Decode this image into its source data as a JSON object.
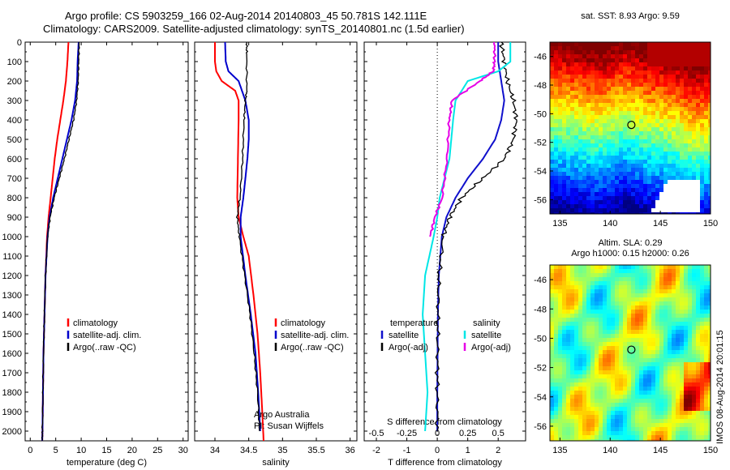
{
  "header": {
    "line1": "Argo profile: CS 5903259_166 02-Aug-2014 20140803_45 50.781S 142.111E",
    "line2": "Climatology: CARS2009. Satellite-adjusted climatology: synTS_20140801.nc (1.5d earlier)"
  },
  "colors": {
    "climatology": "#ff0000",
    "satellite": "#0000cc",
    "argo": "#000000",
    "temp_sat": "#1010cc",
    "sal_sat": "#00e6e6",
    "sal_argo": "#e600e6"
  },
  "chart_data": [
    {
      "type": "line",
      "id": "temperature",
      "xlabel": "temperature (deg C)",
      "ylabel": "",
      "xlim": [
        -1,
        31
      ],
      "ylim": [
        2050,
        0
      ],
      "xticks": [
        0,
        5,
        10,
        15,
        20,
        25,
        30
      ],
      "yticks": [
        0,
        100,
        200,
        300,
        400,
        500,
        600,
        700,
        800,
        900,
        1000,
        1100,
        1200,
        1300,
        1400,
        1500,
        1600,
        1700,
        1800,
        1900,
        2000
      ],
      "legend": [
        "climatology",
        "satellite-adj. clim.",
        "Argo(..raw -QC)"
      ],
      "legend_position": "bottom-right",
      "series": [
        {
          "name": "climatology",
          "color": "#ff0000",
          "depth": [
            0,
            100,
            200,
            300,
            400,
            500,
            600,
            700,
            800,
            900,
            1000,
            1200,
            1400,
            1600,
            1800,
            2000,
            2050
          ],
          "values": [
            7.5,
            7.3,
            7.0,
            6.5,
            5.9,
            5.3,
            4.8,
            4.4,
            4.0,
            3.6,
            3.3,
            3.0,
            2.8,
            2.6,
            2.5,
            2.4,
            2.35
          ]
        },
        {
          "name": "satellite-adj. clim.",
          "color": "#0000cc",
          "depth": [
            0,
            100,
            200,
            300,
            400,
            500,
            600,
            700,
            800,
            900,
            1000,
            1200,
            1400,
            1600,
            1800,
            2000,
            2050
          ],
          "values": [
            9.5,
            9.3,
            9.2,
            8.8,
            8.1,
            7.2,
            6.3,
            5.4,
            4.5,
            3.8,
            3.4,
            3.0,
            2.8,
            2.6,
            2.5,
            2.4,
            2.35
          ]
        },
        {
          "name": "Argo(..raw -QC)",
          "color": "#000000",
          "depth": [
            0,
            100,
            200,
            300,
            400,
            500,
            600,
            700,
            800,
            900,
            1000,
            1200,
            1400,
            1600,
            1800,
            2000,
            2050
          ],
          "values": [
            9.6,
            9.5,
            9.4,
            9.1,
            8.5,
            7.6,
            6.7,
            5.7,
            4.7,
            3.9,
            3.4,
            3.0,
            2.8,
            2.6,
            2.5,
            2.4,
            2.35
          ]
        }
      ]
    },
    {
      "type": "line",
      "id": "salinity",
      "xlabel": "salinity",
      "ylabel": "",
      "xlim": [
        33.7,
        36.1
      ],
      "ylim": [
        2050,
        0
      ],
      "xticks": [
        34,
        34.5,
        35,
        35.5,
        36
      ],
      "legend": [
        "climatology",
        "satellite-adj. clim.",
        "Argo(..raw -QC)"
      ],
      "legend_position": "bottom-right",
      "annotation": [
        "Argo Australia",
        "PI: Susan Wijffels"
      ],
      "series": [
        {
          "name": "climatology",
          "color": "#ff0000",
          "depth": [
            0,
            100,
            150,
            200,
            250,
            300,
            400,
            600,
            800,
            900,
            1000,
            1100,
            1300,
            1500,
            1700,
            1900,
            2050
          ],
          "values": [
            34.0,
            34.0,
            34.02,
            34.1,
            34.3,
            34.35,
            34.35,
            34.34,
            34.33,
            34.35,
            34.42,
            34.5,
            34.57,
            34.63,
            34.67,
            34.7,
            34.72
          ]
        },
        {
          "name": "satellite-adj. clim.",
          "color": "#0000cc",
          "depth": [
            0,
            100,
            150,
            200,
            300,
            400,
            500,
            600,
            700,
            800,
            900,
            1000,
            1200,
            1400,
            1600,
            1800,
            2000
          ],
          "values": [
            34.15,
            34.16,
            34.2,
            34.35,
            34.45,
            34.5,
            34.5,
            34.48,
            34.45,
            34.42,
            34.38,
            34.38,
            34.45,
            34.53,
            34.6,
            34.64,
            34.67
          ]
        },
        {
          "name": "Argo(..raw -QC)",
          "color": "#000000",
          "depth": [
            0,
            40,
            60,
            250,
            300,
            400,
            600,
            800,
            900,
            1000,
            1200,
            1400,
            1600,
            1800,
            2000
          ],
          "values": [
            34.47,
            34.47,
            34.47,
            34.47,
            34.45,
            34.43,
            34.41,
            34.37,
            34.33,
            34.36,
            34.44,
            34.52,
            34.58,
            34.63,
            34.66
          ]
        }
      ]
    },
    {
      "type": "line",
      "id": "differences",
      "xlabel": "T difference from climatology",
      "top_axis_label": "S difference from climatology",
      "xlim": [
        -2.4,
        2.9
      ],
      "ylim": [
        2050,
        0
      ],
      "xticks": [
        -2,
        -1,
        0,
        1,
        2
      ],
      "top_ticks": [
        -0.5,
        -0.25,
        0,
        0.25,
        0.5
      ],
      "top_tick_labels": [
        "-0.5",
        "-0.25",
        "0",
        "0.25",
        "0.5"
      ],
      "legend_groups": [
        {
          "title": "temperature",
          "items": [
            "satellite",
            "Argo(-adj)"
          ]
        },
        {
          "title": "salinity",
          "items": [
            "satellite",
            "Argo(-adj)"
          ]
        }
      ],
      "series": [
        {
          "name": "temperature satellite",
          "color": "#1010cc",
          "depth": [
            0,
            100,
            200,
            300,
            400,
            500,
            600,
            700,
            800,
            900,
            1000,
            1200,
            1400,
            1600,
            1800,
            2000
          ],
          "values": [
            2.0,
            2.0,
            2.1,
            2.2,
            2.1,
            1.9,
            1.5,
            1.0,
            0.6,
            0.3,
            0.15,
            0.05,
            0.02,
            0.01,
            0.0,
            0.0
          ]
        },
        {
          "name": "temperature Argo(-adj)",
          "color": "#000000",
          "depth": [
            0,
            100,
            200,
            300,
            400,
            500,
            600,
            700,
            800,
            900,
            1000,
            1200,
            1400,
            1600,
            1800,
            2000
          ],
          "values": [
            2.1,
            2.2,
            2.3,
            2.5,
            2.6,
            2.5,
            2.2,
            1.5,
            0.8,
            0.4,
            0.2,
            0.05,
            0.02,
            0.01,
            0.0,
            0.0
          ]
        },
        {
          "name": "salinity satellite",
          "color": "#00e6e6",
          "depth": [
            0,
            100,
            150,
            200,
            300,
            400,
            600,
            800,
            900,
            1000,
            1200,
            1400,
            1600,
            1800,
            2000
          ],
          "values": [
            0.6,
            0.6,
            0.5,
            0.25,
            0.15,
            0.13,
            0.1,
            0.02,
            0.0,
            -0.03,
            -0.1,
            -0.12,
            -0.1,
            -0.08,
            -0.1
          ]
        },
        {
          "name": "salinity Argo(-adj)",
          "color": "#e600e6",
          "depth": [
            0,
            100,
            150,
            200,
            300,
            400,
            600,
            800,
            900,
            1000
          ],
          "values": [
            0.47,
            0.47,
            0.46,
            0.35,
            0.12,
            0.1,
            0.08,
            0.04,
            -0.02,
            -0.06
          ]
        }
      ]
    },
    {
      "type": "heatmap",
      "id": "sst-map",
      "title": "sat. SST: 8.93  Argo: 9.59",
      "xlim": [
        134,
        150
      ],
      "ylim": [
        -57,
        -45
      ],
      "xticks": [
        135,
        140,
        145,
        150
      ],
      "yticks": [
        -46,
        -48,
        -50,
        -52,
        -54,
        -56
      ],
      "marker": {
        "lon": 142.111,
        "lat": -50.781
      }
    },
    {
      "type": "heatmap",
      "id": "sla-map",
      "title": "Altim. SLA: 0.29",
      "subtitle": "Argo h1000: 0.15 h2000: 0.26",
      "xlim": [
        134,
        150
      ],
      "ylim": [
        -57,
        -45
      ],
      "xticks": [
        135,
        140,
        145,
        150
      ],
      "yticks": [
        -46,
        -48,
        -50,
        -52,
        -54,
        -56
      ],
      "marker": {
        "lon": 142.111,
        "lat": -50.781
      }
    }
  ],
  "footer": {
    "vertical_stamp": "IMOS 08-Aug-2014 20:01:15"
  }
}
